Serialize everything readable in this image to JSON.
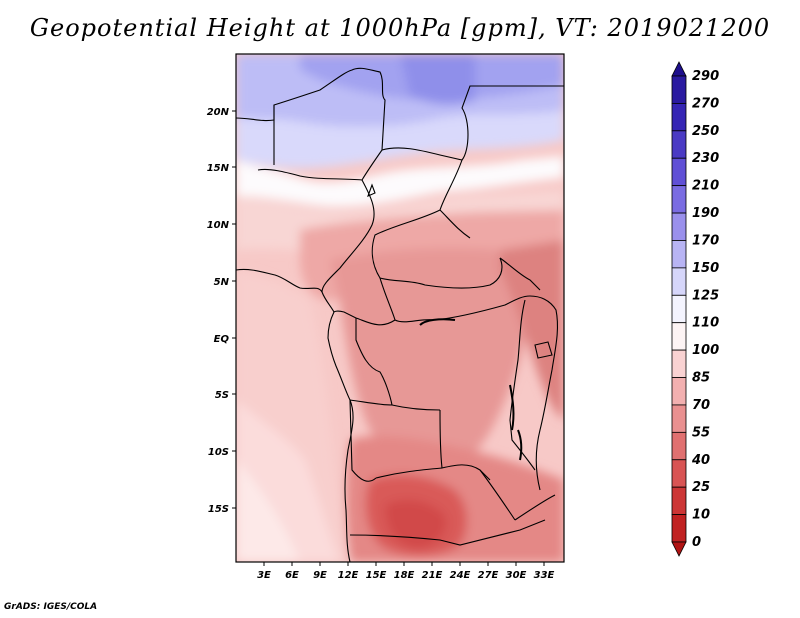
{
  "title": "Geopotential Height at 1000hPa [gpm], VT: 2019021200",
  "credit": "GrADS: IGES/COLA",
  "map": {
    "lat_labels": [
      "20N",
      "15N",
      "10N",
      "5N",
      "EQ",
      "5S",
      "10S",
      "15S"
    ],
    "lon_labels": [
      "3E",
      "6E",
      "9E",
      "12E",
      "15E",
      "18E",
      "21E",
      "24E",
      "27E",
      "30E",
      "33E"
    ]
  },
  "colorbar": {
    "labels": [
      "290",
      "270",
      "250",
      "230",
      "210",
      "190",
      "170",
      "150",
      "125",
      "110",
      "100",
      "85",
      "70",
      "55",
      "40",
      "25",
      "10",
      "0"
    ],
    "colors": [
      "#1e0f8c",
      "#2a1aa0",
      "#3525b4",
      "#4a3ac4",
      "#6050d6",
      "#7a6ce2",
      "#9a90ec",
      "#b8b4f4",
      "#d6d6fa",
      "#f4f4fe",
      "#fdf4f4",
      "#f9d2d2",
      "#f2b0b0",
      "#e99090",
      "#e07070",
      "#d85454",
      "#cc3636",
      "#c02222",
      "#b01414"
    ]
  }
}
